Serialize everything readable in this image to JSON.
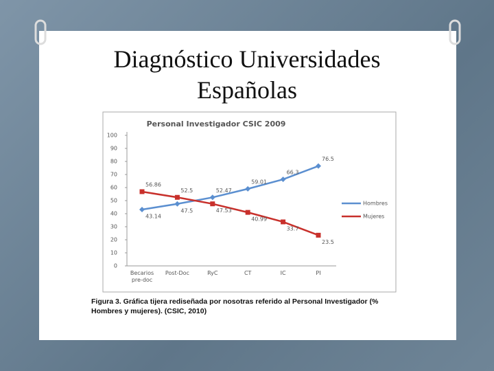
{
  "header": {
    "title": "Diagnóstico Universidades Españolas"
  },
  "caption": "Figura 3. Gráfica tijera rediseñada por nosotras referido al Personal Investigador (% Hombres y mujeres). (CSIC, 2010)",
  "chart_data": {
    "type": "line",
    "title": "Personal Investigador CSIC 2009",
    "categories": [
      "Becarios pre-doc",
      "Post-Doc",
      "RyC",
      "CT",
      "IC",
      "PI"
    ],
    "series": [
      {
        "name": "Hombres",
        "color": "#5b8fd0",
        "values": [
          43.14,
          47.5,
          52.47,
          59.01,
          66.3,
          76.5
        ]
      },
      {
        "name": "Mujeres",
        "color": "#c8302b",
        "values": [
          56.86,
          52.5,
          47.53,
          40.99,
          33.7,
          23.5
        ]
      }
    ],
    "ylim": [
      0,
      100
    ],
    "yticks": [
      0,
      10,
      20,
      30,
      40,
      50,
      60,
      70,
      80,
      90,
      100
    ],
    "grid": false,
    "legend": "right"
  }
}
